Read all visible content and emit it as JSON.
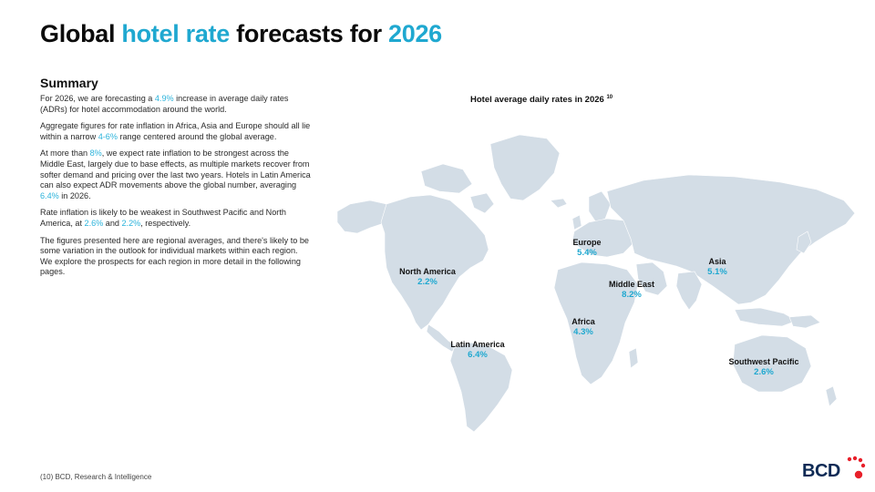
{
  "title": {
    "part1": "Global ",
    "highlight1": "hotel rate",
    "part2": " forecasts for ",
    "highlight2": "2026"
  },
  "summary": {
    "heading": "Summary",
    "p1": {
      "a": "For 2026, we are forecasting a ",
      "h": "4.9%",
      "b": " increase in average daily rates (ADRs) for hotel accommodation around the world."
    },
    "p2": {
      "a": "Aggregate figures for rate inflation in Africa, Asia and Europe should all lie within a narrow ",
      "h": "4-6%",
      "b": " range centered around the global average."
    },
    "p3": {
      "a": "At more than ",
      "h1": "8%",
      "b": ", we expect rate inflation to be strongest across the Middle East, largely due to base effects, as multiple markets recover from softer demand and pricing over the last two years. Hotels in Latin America can also expect ADR movements above the global number, averaging ",
      "h2": "6.4%",
      "c": " in 2026."
    },
    "p4": {
      "a": "Rate inflation is likely to be weakest in Southwest Pacific and North America, at ",
      "h1": "2.6%",
      "b": " and ",
      "h2": "2.2%",
      "c": ", respectively."
    },
    "p5": "The figures presented here are regional averages, and there's likely to be some variation in the outlook for individual markets within each region. We explore the prospects for each region in more detail in the following pages."
  },
  "map": {
    "title": "Hotel average daily rates in 2026",
    "title_ref": "10",
    "land_color": "#d3dde6",
    "regions": [
      {
        "name": "North America",
        "value": "2.2%"
      },
      {
        "name": "Europe",
        "value": "5.4%"
      },
      {
        "name": "Asia",
        "value": "5.1%"
      },
      {
        "name": "Middle East",
        "value": "8.2%"
      },
      {
        "name": "Africa",
        "value": "4.3%"
      },
      {
        "name": "Latin America",
        "value": "6.4%"
      },
      {
        "name": "Southwest Pacific",
        "value": "2.6%"
      }
    ]
  },
  "footnote": "(10) BCD, Research & Intelligence",
  "logo": {
    "text": "BCD",
    "dot_color": "#e8202a"
  },
  "colors": {
    "accent": "#1fa8d0",
    "title": "#0b0b0b"
  }
}
